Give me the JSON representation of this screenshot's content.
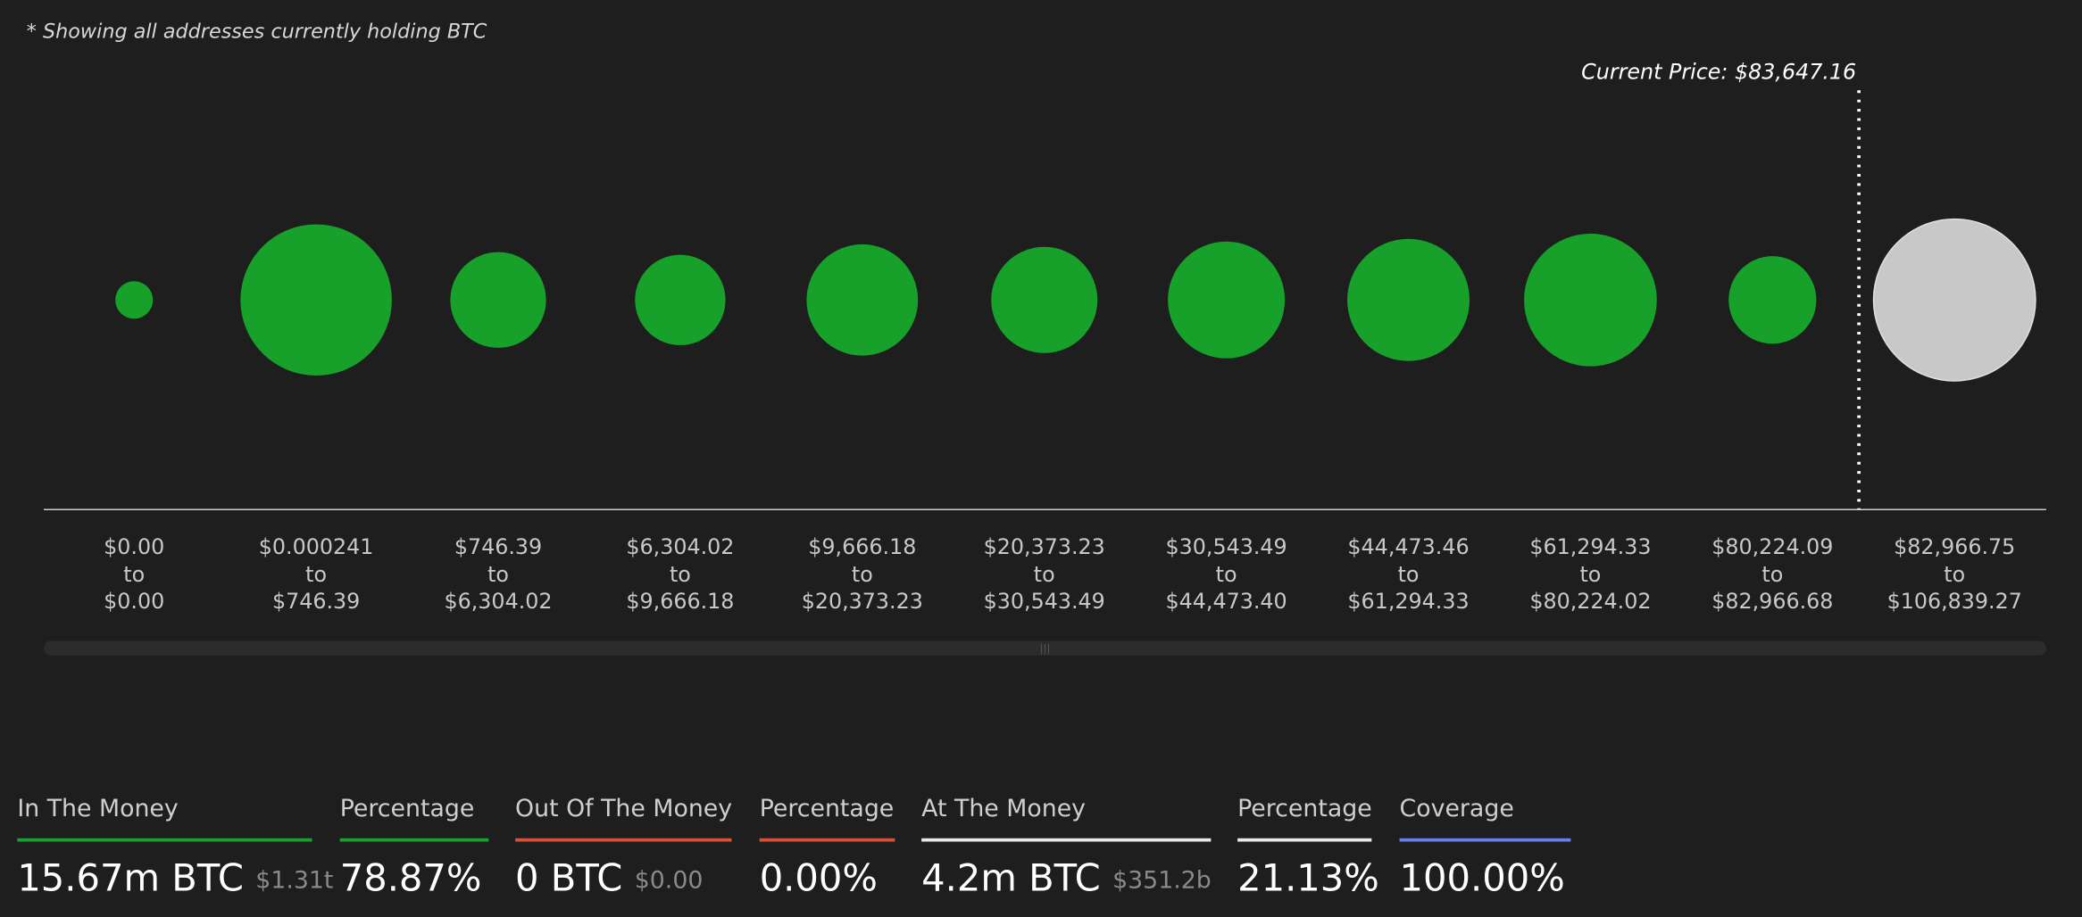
{
  "note": "* Showing all addresses currently holding BTC",
  "chart_data": {
    "type": "bubble",
    "annotation": "Current Price: $83,647.16",
    "range_word": "to",
    "categories": [
      {
        "from": "$0.00",
        "to": "$0.00"
      },
      {
        "from": "$0.000241",
        "to": "$746.39"
      },
      {
        "from": "$746.39",
        "to": "$6,304.02"
      },
      {
        "from": "$6,304.02",
        "to": "$9,666.18"
      },
      {
        "from": "$9,666.18",
        "to": "$20,373.23"
      },
      {
        "from": "$20,373.23",
        "to": "$30,543.49"
      },
      {
        "from": "$30,543.49",
        "to": "$44,473.40"
      },
      {
        "from": "$44,473.46",
        "to": "$61,294.33"
      },
      {
        "from": "$61,294.33",
        "to": "$80,224.02"
      },
      {
        "from": "$80,224.09",
        "to": "$82,966.68"
      },
      {
        "from": "$82,966.75",
        "to": "$106,839.27"
      }
    ],
    "values": [
      2,
      32.5,
      13,
      11.6,
      17.6,
      16,
      19.4,
      21.2,
      25,
      10.9,
      37.2
    ],
    "colors": [
      "#17a02a",
      "#17a02a",
      "#17a02a",
      "#17a02a",
      "#17a02a",
      "#17a02a",
      "#17a02a",
      "#17a02a",
      "#17a02a",
      "#17a02a",
      "#c8c8c8"
    ]
  },
  "summary": [
    {
      "label": "In The Money",
      "value": "15.67m BTC",
      "sub": "$1.31t",
      "color": "#1e9e33"
    },
    {
      "label": "Percentage",
      "value": "78.87%",
      "color": "#1e9e33"
    },
    {
      "label": "Out Of The Money",
      "value": "0 BTC",
      "sub": "$0.00",
      "color": "#d4523a"
    },
    {
      "label": "Percentage",
      "value": "0.00%",
      "color": "#d4523a"
    },
    {
      "label": "At The Money",
      "value": "4.2m BTC",
      "sub": "$351.2b",
      "color": "#e8e8e8"
    },
    {
      "label": "Percentage",
      "value": "21.13%",
      "color": "#e8e8e8"
    },
    {
      "label": "Coverage",
      "value": "100.00%",
      "color": "#6b7fe8"
    }
  ]
}
